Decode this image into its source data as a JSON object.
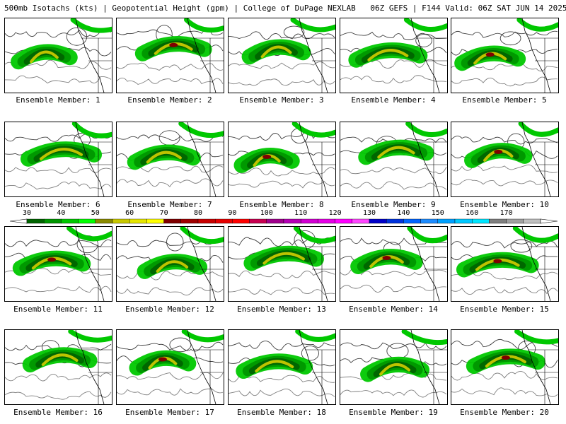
{
  "header": {
    "title": "500mb Isotachs (kts) | Geopotential Height (gpm) | College of DuPage NEXLAB",
    "run_info": "06Z GEFS | F144 Valid: 06Z SAT JUN 14 2025"
  },
  "panels": [
    {
      "label": "Ensemble Member: 1"
    },
    {
      "label": "Ensemble Member: 2"
    },
    {
      "label": "Ensemble Member: 3"
    },
    {
      "label": "Ensemble Member: 4"
    },
    {
      "label": "Ensemble Member: 5"
    },
    {
      "label": "Ensemble Member: 6"
    },
    {
      "label": "Ensemble Member: 7"
    },
    {
      "label": "Ensemble Member: 8"
    },
    {
      "label": "Ensemble Member: 9"
    },
    {
      "label": "Ensemble Member: 10"
    },
    {
      "label": "Ensemble Member: 11"
    },
    {
      "label": "Ensemble Member: 12"
    },
    {
      "label": "Ensemble Member: 13"
    },
    {
      "label": "Ensemble Member: 14"
    },
    {
      "label": "Ensemble Member: 15"
    },
    {
      "label": "Ensemble Member: 16"
    },
    {
      "label": "Ensemble Member: 17"
    },
    {
      "label": "Ensemble Member: 18"
    },
    {
      "label": "Ensemble Member: 19"
    },
    {
      "label": "Ensemble Member: 20"
    }
  ],
  "colorbar": {
    "ticks": [
      "30",
      "40",
      "50",
      "60",
      "70",
      "80",
      "90",
      "100",
      "110",
      "120",
      "130",
      "140",
      "150",
      "160",
      "170"
    ],
    "colors": [
      "#006400",
      "#009600",
      "#00c800",
      "#00ff00",
      "#8b8b00",
      "#c8c800",
      "#e6e600",
      "#ffff00",
      "#800000",
      "#a00000",
      "#c80000",
      "#e60000",
      "#ff0000",
      "#c80050",
      "#a0008c",
      "#b400b4",
      "#d200d2",
      "#e600e6",
      "#ff00ff",
      "#ff46ff",
      "#0000c8",
      "#0032dc",
      "#0064ff",
      "#1e8cff",
      "#00a0ff",
      "#00c8ff",
      "#00e6ff",
      "#808080",
      "#a0a0a0",
      "#c0c0c0"
    ]
  },
  "jet_colors": {
    "light": "#00c800",
    "mid": "#009600",
    "dark": "#006400",
    "core": "#c8c800",
    "max": "#800000"
  }
}
